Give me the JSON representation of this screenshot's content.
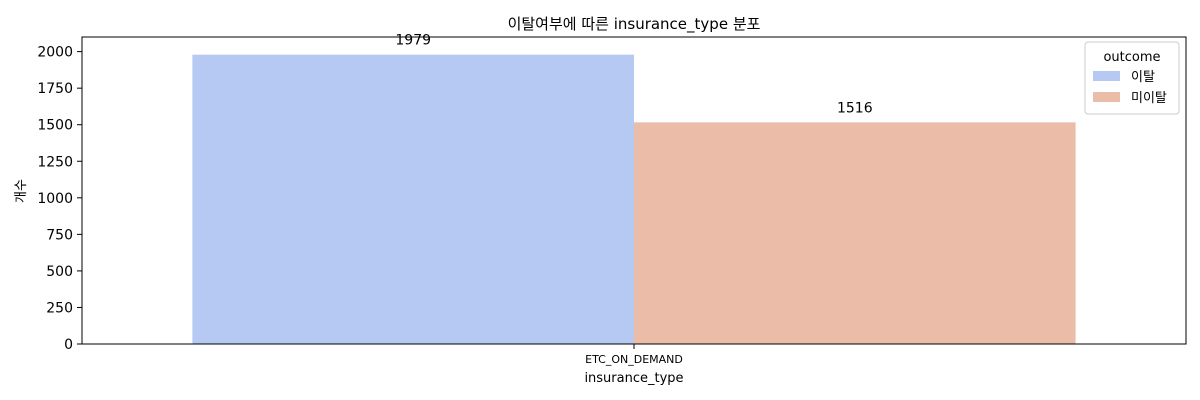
{
  "chart_data": {
    "type": "bar",
    "title": "이탈여부에 따른 insurance_type 분포",
    "xlabel": "insurance_type",
    "ylabel": "개수",
    "categories": [
      "ETC_ON_DEMAND"
    ],
    "series": [
      {
        "name": "이탈",
        "values": [
          1979
        ],
        "color": "#b5c9f3"
      },
      {
        "name": "미이탈",
        "values": [
          1516
        ],
        "color": "#ebbca7"
      }
    ],
    "ylim": [
      0,
      2100
    ],
    "yticks": [
      0,
      250,
      500,
      750,
      1000,
      1250,
      1500,
      1750,
      2000
    ],
    "grid": false,
    "legend": {
      "title": "outcome",
      "placement": "top-right"
    }
  }
}
